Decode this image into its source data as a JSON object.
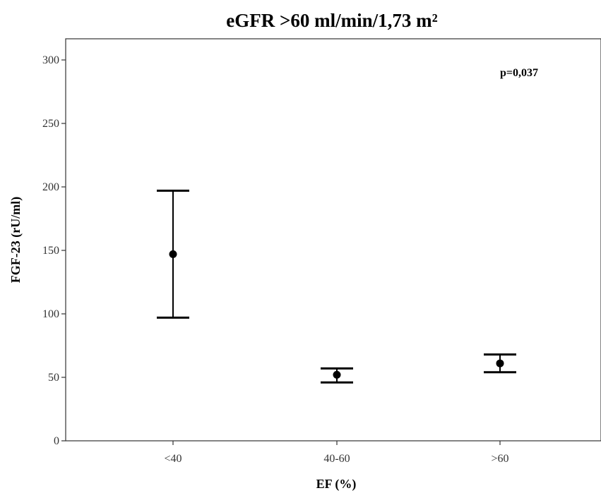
{
  "chart_data": {
    "type": "errorbar",
    "title": "eGFR >60 ml/min/1,73 m²",
    "xlabel": "EF (%)",
    "ylabel": "FGF-23 (rU/ml)",
    "categories": [
      "<40",
      "40-60",
      ">60"
    ],
    "points": [
      {
        "category": "<40",
        "mean": 147,
        "lower": 97,
        "upper": 197
      },
      {
        "category": "40-60",
        "mean": 52,
        "lower": 46,
        "upper": 57
      },
      {
        "category": ">60",
        "mean": 61,
        "lower": 54,
        "upper": 68
      }
    ],
    "ylim": [
      0,
      300
    ],
    "yticks": [
      0,
      50,
      100,
      150,
      200,
      250,
      300
    ],
    "ytick_labels": [
      "0",
      "50",
      "100",
      "150",
      "200",
      "250",
      "300"
    ],
    "grid": false,
    "annotation": "p=0,037",
    "colors": {
      "marks": "#000000",
      "axis": "#333333"
    }
  }
}
